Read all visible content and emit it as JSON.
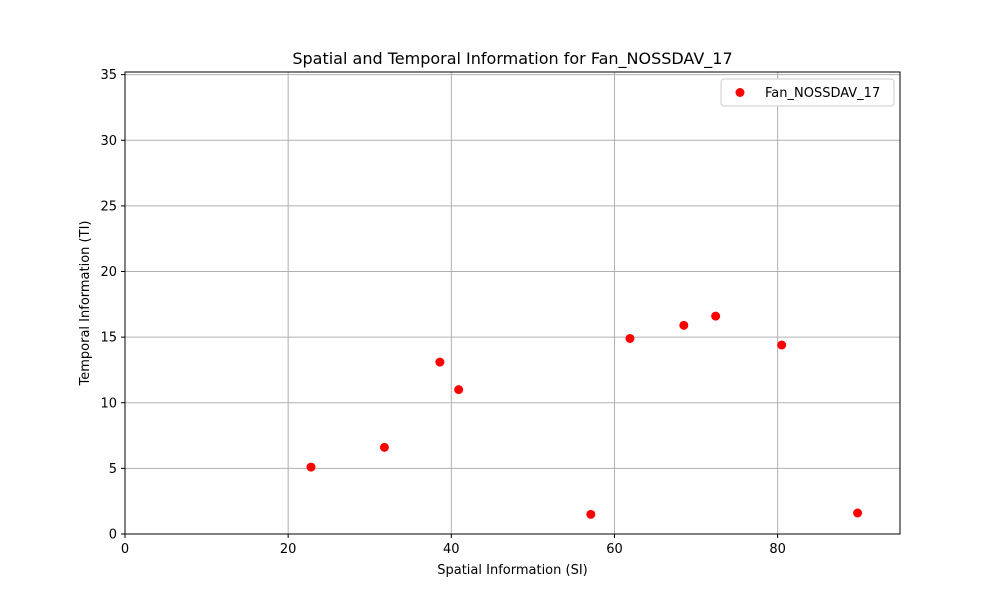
{
  "chart_data": {
    "type": "scatter",
    "title": "Spatial and Temporal Information for Fan_NOSSDAV_17",
    "xlabel": "Spatial Information (SI)",
    "ylabel": "Temporal Information (TI)",
    "xlim": [
      0,
      95
    ],
    "ylim": [
      0,
      35.2
    ],
    "xticks": [
      0,
      20,
      40,
      60,
      80
    ],
    "yticks": [
      0,
      5,
      10,
      15,
      20,
      25,
      30,
      35
    ],
    "grid": true,
    "legend": {
      "placement": "top-right",
      "entries": [
        "Fan_NOSSDAV_17"
      ]
    },
    "series": [
      {
        "name": "Fan_NOSSDAV_17",
        "color": "#ff0000",
        "marker": "circle",
        "points": [
          {
            "x": 22.8,
            "y": 5.1
          },
          {
            "x": 31.8,
            "y": 6.6
          },
          {
            "x": 38.6,
            "y": 13.1
          },
          {
            "x": 40.9,
            "y": 11.0
          },
          {
            "x": 57.1,
            "y": 1.5
          },
          {
            "x": 61.9,
            "y": 14.9
          },
          {
            "x": 68.5,
            "y": 15.9
          },
          {
            "x": 72.4,
            "y": 16.6
          },
          {
            "x": 80.5,
            "y": 14.4
          },
          {
            "x": 89.8,
            "y": 1.6
          }
        ]
      }
    ]
  }
}
